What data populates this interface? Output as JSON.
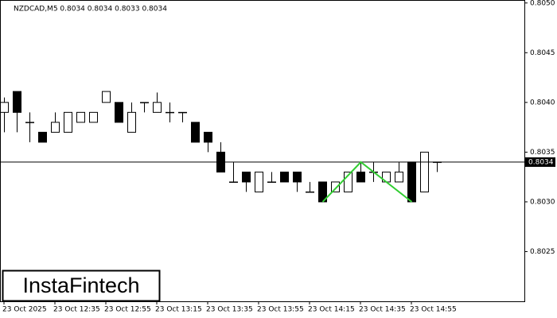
{
  "chart_data": {
    "type": "candlestick",
    "title": "NZDCAD,M5  0.8034 0.8034 0.8033 0.8034",
    "categories": [
      "23 Oct 2025",
      null,
      null,
      null,
      "23 Oct 12:35",
      null,
      null,
      null,
      "23 Oct 12:55",
      null,
      null,
      null,
      "23 Oct 13:15",
      null,
      null,
      null,
      "23 Oct 13:35",
      null,
      null,
      null,
      "23 Oct 13:55",
      null,
      null,
      null,
      "23 Oct 14:15",
      null,
      null,
      null,
      "23 Oct 14:35",
      null,
      null,
      null,
      "23 Oct 14:55",
      null,
      null
    ],
    "open": [
      0.8039,
      0.80411,
      0.8038,
      0.8037,
      0.8037,
      0.8037,
      0.8038,
      0.8038,
      0.804,
      0.804,
      0.8037,
      0.804,
      0.8039,
      0.8039,
      0.8039,
      0.8038,
      0.8037,
      0.8035,
      0.8032,
      0.8033,
      0.8031,
      0.8032,
      0.8033,
      0.8033,
      0.8031,
      0.8032,
      0.8031,
      0.8031,
      0.8033,
      0.8033,
      0.8032,
      0.8032,
      0.8034,
      0.8031,
      0.8034
    ],
    "high": [
      0.80405,
      0.80411,
      0.8039,
      0.8037,
      0.8039,
      0.8039,
      0.8039,
      0.8039,
      0.80411,
      0.804,
      0.804,
      0.804,
      0.8041,
      0.804,
      0.8039,
      0.8038,
      0.8037,
      0.8036,
      0.8034,
      0.8033,
      0.8033,
      0.8033,
      0.8033,
      0.8033,
      0.8032,
      0.8032,
      0.8032,
      0.8033,
      0.8034,
      0.8034,
      0.8033,
      0.8034,
      0.8034,
      0.8035,
      0.8034
    ],
    "low": [
      0.8037,
      0.8037,
      0.8036,
      0.8036,
      0.8037,
      0.8037,
      0.8038,
      0.8038,
      0.804,
      0.8038,
      0.8037,
      0.8039,
      0.8039,
      0.8038,
      0.8038,
      0.8036,
      0.8035,
      0.8033,
      0.8032,
      0.8031,
      0.8031,
      0.8032,
      0.8032,
      0.8031,
      0.8031,
      0.803,
      0.8031,
      0.8031,
      0.8032,
      0.8032,
      0.8032,
      0.8032,
      0.803,
      0.8031,
      0.8033
    ],
    "close": [
      0.804,
      0.8039,
      0.8038,
      0.8036,
      0.8038,
      0.8039,
      0.8039,
      0.8039,
      0.80411,
      0.8038,
      0.8039,
      0.804,
      0.804,
      0.8039,
      0.8039,
      0.8036,
      0.8036,
      0.8033,
      0.8032,
      0.8032,
      0.8033,
      0.8032,
      0.8032,
      0.8032,
      0.8031,
      0.803,
      0.8032,
      0.8033,
      0.8032,
      0.8033,
      0.8033,
      0.8033,
      0.803,
      0.8035,
      0.8034
    ],
    "up_color": "#ffffff",
    "down_color": "#000000",
    "ylim": [
      0.802,
      0.80503
    ],
    "yticks": [
      0.8025,
      {
        "value": 0.803,
        "label": "0.8030"
      },
      0.8035,
      {
        "value": 0.804,
        "label": "0.8040"
      },
      0.8045,
      {
        "value": 0.805,
        "label": "0.8050"
      }
    ],
    "last_price": 0.8034,
    "pattern": {
      "color": "#32cd32",
      "x": [
        25,
        28,
        32
      ],
      "y": [
        0.803,
        0.8034,
        0.803
      ]
    },
    "logo": "InstaFintech"
  }
}
